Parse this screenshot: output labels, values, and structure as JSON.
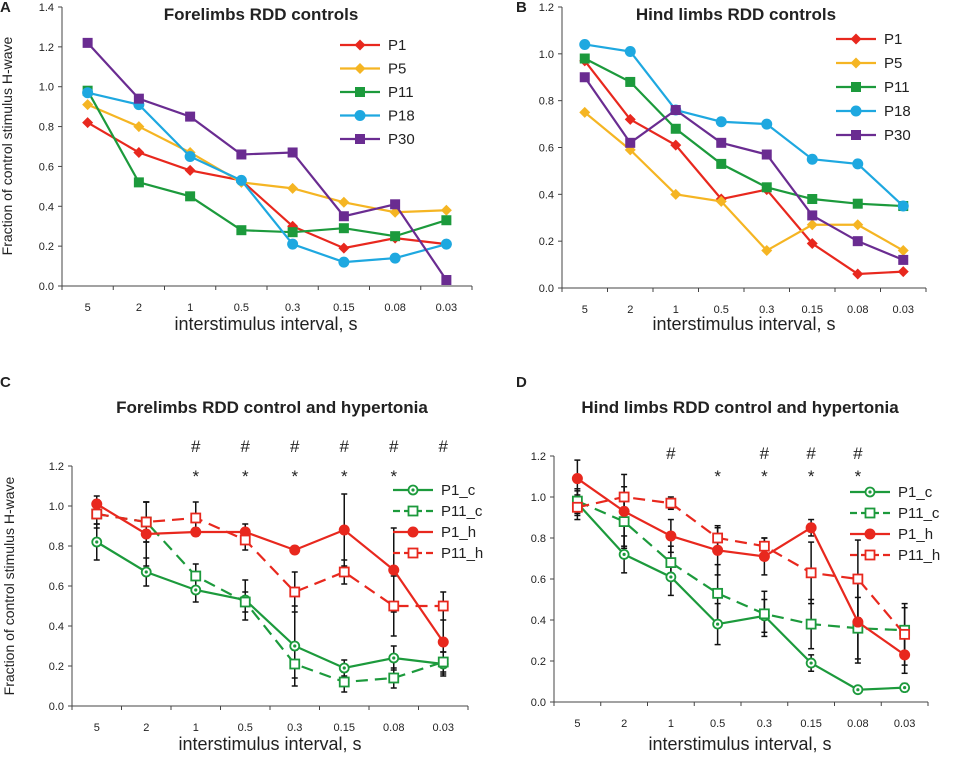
{
  "chart_data": [
    {
      "panel": "A",
      "type": "line",
      "title": "Forelimbs RDD controls",
      "xlabel": "interstimulus interval, s",
      "ylabel": "Fraction of control stimulus H-wave",
      "categories": [
        "5",
        "2",
        "1",
        "0.5",
        "0.3",
        "0.15",
        "0.08",
        "0.03"
      ],
      "ylim": [
        0,
        1.4
      ],
      "yticks": [
        "0.0",
        "0.2",
        "0.4",
        "0.6",
        "0.8",
        "1.0",
        "1.2",
        "1.4"
      ],
      "legend_position": "top-right",
      "series": [
        {
          "name": "P1",
          "color": "#e8281e",
          "marker": "diamond",
          "dash": "solid",
          "values": [
            0.82,
            0.67,
            0.58,
            0.53,
            0.3,
            0.19,
            0.24,
            0.21
          ]
        },
        {
          "name": "P5",
          "color": "#f5b523",
          "marker": "diamond",
          "dash": "solid",
          "values": [
            0.91,
            0.8,
            0.67,
            0.52,
            0.49,
            0.42,
            0.37,
            0.38
          ]
        },
        {
          "name": "P11",
          "color": "#1c9a3c",
          "marker": "square",
          "dash": "solid",
          "values": [
            0.98,
            0.52,
            0.45,
            0.28,
            0.27,
            0.29,
            0.25,
            0.33
          ]
        },
        {
          "name": "P18",
          "color": "#1ea8e0",
          "marker": "circle",
          "dash": "solid",
          "values": [
            0.97,
            0.91,
            0.65,
            0.53,
            0.21,
            0.12,
            0.14,
            0.21
          ]
        },
        {
          "name": "P30",
          "color": "#6a2c91",
          "marker": "square",
          "dash": "solid",
          "values": [
            1.22,
            0.94,
            0.85,
            0.66,
            0.67,
            0.35,
            0.41,
            0.03
          ]
        }
      ]
    },
    {
      "panel": "B",
      "type": "line",
      "title": "Hind limbs RDD controls",
      "xlabel": "interstimulus interval, s",
      "ylabel": "",
      "categories": [
        "5",
        "2",
        "1",
        "0.5",
        "0.3",
        "0.15",
        "0.08",
        "0.03"
      ],
      "ylim": [
        0,
        1.2
      ],
      "yticks": [
        "0.0",
        "0.2",
        "0.4",
        "0.6",
        "0.8",
        "1.0",
        "1.2"
      ],
      "legend_position": "top-right",
      "series": [
        {
          "name": "P1",
          "color": "#e8281e",
          "marker": "diamond",
          "dash": "solid",
          "values": [
            0.97,
            0.72,
            0.61,
            0.38,
            0.42,
            0.19,
            0.06,
            0.07
          ]
        },
        {
          "name": "P5",
          "color": "#f5b523",
          "marker": "diamond",
          "dash": "solid",
          "values": [
            0.75,
            0.59,
            0.4,
            0.37,
            0.16,
            0.27,
            0.27,
            0.16
          ]
        },
        {
          "name": "P11",
          "color": "#1c9a3c",
          "marker": "square",
          "dash": "solid",
          "values": [
            0.98,
            0.88,
            0.68,
            0.53,
            0.43,
            0.38,
            0.36,
            0.35
          ]
        },
        {
          "name": "P18",
          "color": "#1ea8e0",
          "marker": "circle",
          "dash": "solid",
          "values": [
            1.04,
            1.01,
            0.76,
            0.71,
            0.7,
            0.55,
            0.53,
            0.35
          ]
        },
        {
          "name": "P30",
          "color": "#6a2c91",
          "marker": "square",
          "dash": "solid",
          "values": [
            0.9,
            0.62,
            0.76,
            0.62,
            0.57,
            0.31,
            0.2,
            0.12
          ]
        }
      ]
    },
    {
      "panel": "C",
      "type": "line",
      "title": "Forelimbs RDD control and hypertonia",
      "xlabel": "interstimulus interval, s",
      "ylabel": "Fraction of control stimulus H-wave",
      "categories": [
        "5",
        "2",
        "1",
        "0.5",
        "0.3",
        "0.15",
        "0.08",
        "0.03"
      ],
      "ylim": [
        0,
        1.2
      ],
      "yticks": [
        "0.0",
        "0.2",
        "0.4",
        "0.6",
        "0.8",
        "1.0",
        "1.2"
      ],
      "legend_position": "right",
      "significance": {
        "hash": [
          "",
          "",
          "#",
          "#",
          "#",
          "#",
          "#",
          "#"
        ],
        "star": [
          "",
          "",
          "*",
          "*",
          "*",
          "*",
          "*",
          ""
        ]
      },
      "series": [
        {
          "name": "P1_c",
          "color": "#1c9a3c",
          "marker": "dot-circle",
          "dash": "solid",
          "values": [
            0.82,
            0.67,
            0.58,
            0.53,
            0.3,
            0.19,
            0.24,
            0.21
          ],
          "errors": [
            0.09,
            0.07,
            0.06,
            0.1,
            0.2,
            0.04,
            0.06,
            0.06
          ]
        },
        {
          "name": "P11_c",
          "color": "#1c9a3c",
          "marker": "open-square",
          "dash": "dashed",
          "values": [
            0.96,
            0.92,
            0.65,
            0.52,
            0.21,
            0.12,
            0.14,
            0.22
          ],
          "errors": [
            0.07,
            0.1,
            0.06,
            0.05,
            0.07,
            0.05,
            0.05,
            0.05
          ]
        },
        {
          "name": "P1_h",
          "color": "#e8281e",
          "marker": "dot",
          "dash": "solid",
          "values": [
            1.01,
            0.86,
            0.87,
            0.87,
            0.78,
            0.88,
            0.68,
            0.32
          ],
          "errors": [
            0.04,
            0.16,
            0.02,
            0.04,
            0.0,
            0.18,
            0.21,
            0.16
          ]
        },
        {
          "name": "P11_h",
          "color": "#e8281e",
          "marker": "open-square",
          "dash": "dashed",
          "values": [
            0.96,
            0.92,
            0.94,
            0.83,
            0.57,
            0.67,
            0.5,
            0.5
          ],
          "errors": [
            0.05,
            0.1,
            0.08,
            0.05,
            0.1,
            0.06,
            0.15,
            0.07
          ]
        }
      ]
    },
    {
      "panel": "D",
      "type": "line",
      "title": "Hind limbs RDD control and hypertonia",
      "xlabel": "interstimulus interval, s",
      "ylabel": "",
      "categories": [
        "5",
        "2",
        "1",
        "0.5",
        "0.3",
        "0.15",
        "0.08",
        "0.03"
      ],
      "ylim": [
        0,
        1.2
      ],
      "yticks": [
        "0.0",
        "0.2",
        "0.4",
        "0.6",
        "0.8",
        "1.0",
        "1.2"
      ],
      "legend_position": "right",
      "significance": {
        "hash": [
          "",
          "",
          "#",
          "",
          "#",
          "#",
          "#",
          ""
        ],
        "star": [
          "",
          "",
          "",
          "*",
          "*",
          "*",
          "*",
          ""
        ]
      },
      "series": [
        {
          "name": "P1_c",
          "color": "#1c9a3c",
          "marker": "dot-circle",
          "dash": "solid",
          "values": [
            0.97,
            0.72,
            0.61,
            0.38,
            0.42,
            0.19,
            0.06,
            0.07
          ],
          "errors": [
            0.06,
            0.09,
            0.09,
            0.1,
            0.08,
            0.04,
            0.0,
            0.02
          ]
        },
        {
          "name": "P11_c",
          "color": "#1c9a3c",
          "marker": "open-square",
          "dash": "dashed",
          "values": [
            0.98,
            0.88,
            0.68,
            0.53,
            0.43,
            0.38,
            0.36,
            0.35
          ],
          "errors": [
            0.06,
            0.12,
            0.08,
            0.14,
            0.11,
            0.12,
            0.15,
            0.11
          ]
        },
        {
          "name": "P1_h",
          "color": "#e8281e",
          "marker": "dot",
          "dash": "solid",
          "values": [
            1.09,
            0.93,
            0.81,
            0.74,
            0.71,
            0.85,
            0.39,
            0.23
          ],
          "errors": [
            0.09,
            0.18,
            0.08,
            0.12,
            0.09,
            0.04,
            0.2,
            0.09
          ]
        },
        {
          "name": "P11_h",
          "color": "#e8281e",
          "marker": "open-square",
          "dash": "dashed",
          "values": [
            0.95,
            1.0,
            0.97,
            0.8,
            0.76,
            0.63,
            0.6,
            0.33
          ],
          "errors": [
            0.06,
            0.05,
            0.03,
            0.05,
            0.04,
            0.15,
            0.19,
            0.15
          ]
        }
      ]
    }
  ]
}
